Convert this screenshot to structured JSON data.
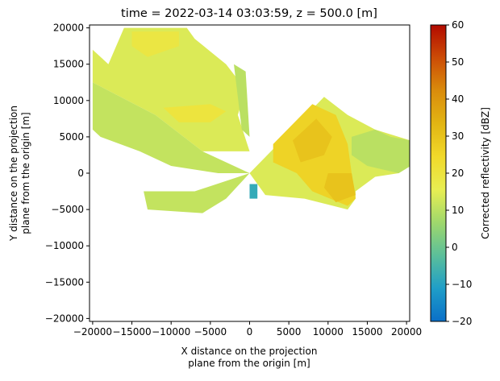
{
  "chart_data": {
    "type": "heatmap",
    "title": "time = 2022-03-14 03:03:59, z = 500.0 [m]",
    "xlabel": [
      "X distance on the projection",
      "plane from the origin [m]"
    ],
    "ylabel": [
      "Y distance on the projection",
      "plane from the origin [m]"
    ],
    "xlim": [
      -20400,
      20400
    ],
    "ylim": [
      -20400,
      20400
    ],
    "xticks": [
      -20000,
      -15000,
      -10000,
      -5000,
      0,
      5000,
      10000,
      15000,
      20000
    ],
    "xtick_labels": [
      "−20000",
      "−15000",
      "−10000",
      "−5000",
      "0",
      "5000",
      "10000",
      "15000",
      "20000"
    ],
    "yticks": [
      20000,
      15000,
      10000,
      5000,
      0,
      -5000,
      -10000,
      -15000,
      -20000
    ],
    "ytick_labels": [
      "20000",
      "15000",
      "10000",
      "5000",
      "0",
      "−5000",
      "−10000",
      "−15000",
      "−20000"
    ],
    "grid": false,
    "colorbar": {
      "label": "Corrected reflectivity [dBZ]",
      "vmin": -20,
      "vmax": 60,
      "ticks": [
        60,
        50,
        40,
        30,
        20,
        10,
        0,
        -10,
        -20
      ],
      "tick_labels": [
        "60",
        "50",
        "40",
        "30",
        "20",
        "10",
        "0",
        "−10",
        "−20"
      ],
      "colormap": [
        "#0a6fc8",
        "#1f9ec8",
        "#5bbf9a",
        "#9fd86c",
        "#e8ee52",
        "#f1d92a",
        "#e2b513",
        "#da8c0c",
        "#cc4c06",
        "#b20a00"
      ]
    },
    "regions": [
      {
        "name": "northwest-band",
        "dbz": 14,
        "polygon": [
          [
            -16000,
            20000
          ],
          [
            -8000,
            20000
          ],
          [
            -7000,
            18500
          ],
          [
            -3000,
            15000
          ],
          [
            -500,
            11500
          ],
          [
            -1500,
            8000
          ],
          [
            0,
            3000
          ],
          [
            -6000,
            3000
          ],
          [
            -12000,
            8000
          ],
          [
            -20000,
            12500
          ],
          [
            -20000,
            17000
          ],
          [
            -18000,
            15000
          ]
        ]
      },
      {
        "name": "west-band",
        "dbz": 11,
        "polygon": [
          [
            -20000,
            12500
          ],
          [
            -12000,
            8000
          ],
          [
            -6000,
            3000
          ],
          [
            0,
            0
          ],
          [
            -4000,
            0
          ],
          [
            -10000,
            1000
          ],
          [
            -14000,
            3000
          ],
          [
            -19000,
            5000
          ],
          [
            -20000,
            6000
          ]
        ]
      },
      {
        "name": "southwest-band",
        "dbz": 11,
        "polygon": [
          [
            -13500,
            -2500
          ],
          [
            -7000,
            -2500
          ],
          [
            0,
            0
          ],
          [
            -3000,
            -3500
          ],
          [
            -6000,
            -5500
          ],
          [
            -13000,
            -5000
          ]
        ]
      },
      {
        "name": "east-sector",
        "dbz": 14,
        "polygon": [
          [
            0,
            0
          ],
          [
            9500,
            10500
          ],
          [
            12500,
            8000
          ],
          [
            16000,
            6000
          ],
          [
            20500,
            4500
          ],
          [
            20500,
            1000
          ],
          [
            19000,
            0
          ],
          [
            16000,
            -500
          ],
          [
            13500,
            -2500
          ],
          [
            13500,
            -3500
          ],
          [
            12500,
            -5000
          ],
          [
            7000,
            -3500
          ],
          [
            2000,
            -3000
          ]
        ]
      },
      {
        "name": "north-streak",
        "dbz": 10,
        "polygon": [
          [
            -2000,
            15000
          ],
          [
            -500,
            14000
          ],
          [
            0,
            5000
          ],
          [
            -1000,
            6000
          ]
        ]
      },
      {
        "name": "north-core",
        "dbz": 19,
        "polygon": [
          [
            -15000,
            19500
          ],
          [
            -9000,
            19500
          ],
          [
            -9000,
            17500
          ],
          [
            -13000,
            16000
          ],
          [
            -15000,
            17500
          ]
        ]
      },
      {
        "name": "west-core",
        "dbz": 20,
        "polygon": [
          [
            -11000,
            9000
          ],
          [
            -5000,
            9500
          ],
          [
            -3000,
            8500
          ],
          [
            -5000,
            7000
          ],
          [
            -9000,
            7000
          ]
        ]
      },
      {
        "name": "east-core",
        "dbz": 26,
        "polygon": [
          [
            3000,
            4000
          ],
          [
            8000,
            9500
          ],
          [
            11000,
            8000
          ],
          [
            12500,
            4000
          ],
          [
            13000,
            0
          ],
          [
            13500,
            -3500
          ],
          [
            12500,
            -4500
          ],
          [
            8000,
            -2500
          ],
          [
            6000,
            0
          ],
          [
            3000,
            1500
          ]
        ]
      },
      {
        "name": "east-peak",
        "dbz": 30,
        "polygon": [
          [
            5500,
            4500
          ],
          [
            8500,
            7500
          ],
          [
            10500,
            5000
          ],
          [
            9500,
            2500
          ],
          [
            6500,
            1500
          ]
        ]
      },
      {
        "name": "southeast-peak",
        "dbz": 30,
        "polygon": [
          [
            10000,
            0
          ],
          [
            13000,
            0
          ],
          [
            13500,
            -3000
          ],
          [
            11000,
            -4000
          ],
          [
            9500,
            -2000
          ]
        ]
      },
      {
        "name": "far-east-band",
        "dbz": 10,
        "polygon": [
          [
            13000,
            5000
          ],
          [
            16000,
            6000
          ],
          [
            18000,
            5000
          ],
          [
            20500,
            4500
          ],
          [
            20500,
            1000
          ],
          [
            19000,
            0
          ],
          [
            15000,
            1000
          ],
          [
            13000,
            2500
          ]
        ]
      },
      {
        "name": "origin-notch",
        "dbz": -8,
        "polygon": [
          [
            0,
            -1500
          ],
          [
            1000,
            -1500
          ],
          [
            1000,
            -3500
          ],
          [
            0,
            -3500
          ]
        ]
      }
    ]
  }
}
